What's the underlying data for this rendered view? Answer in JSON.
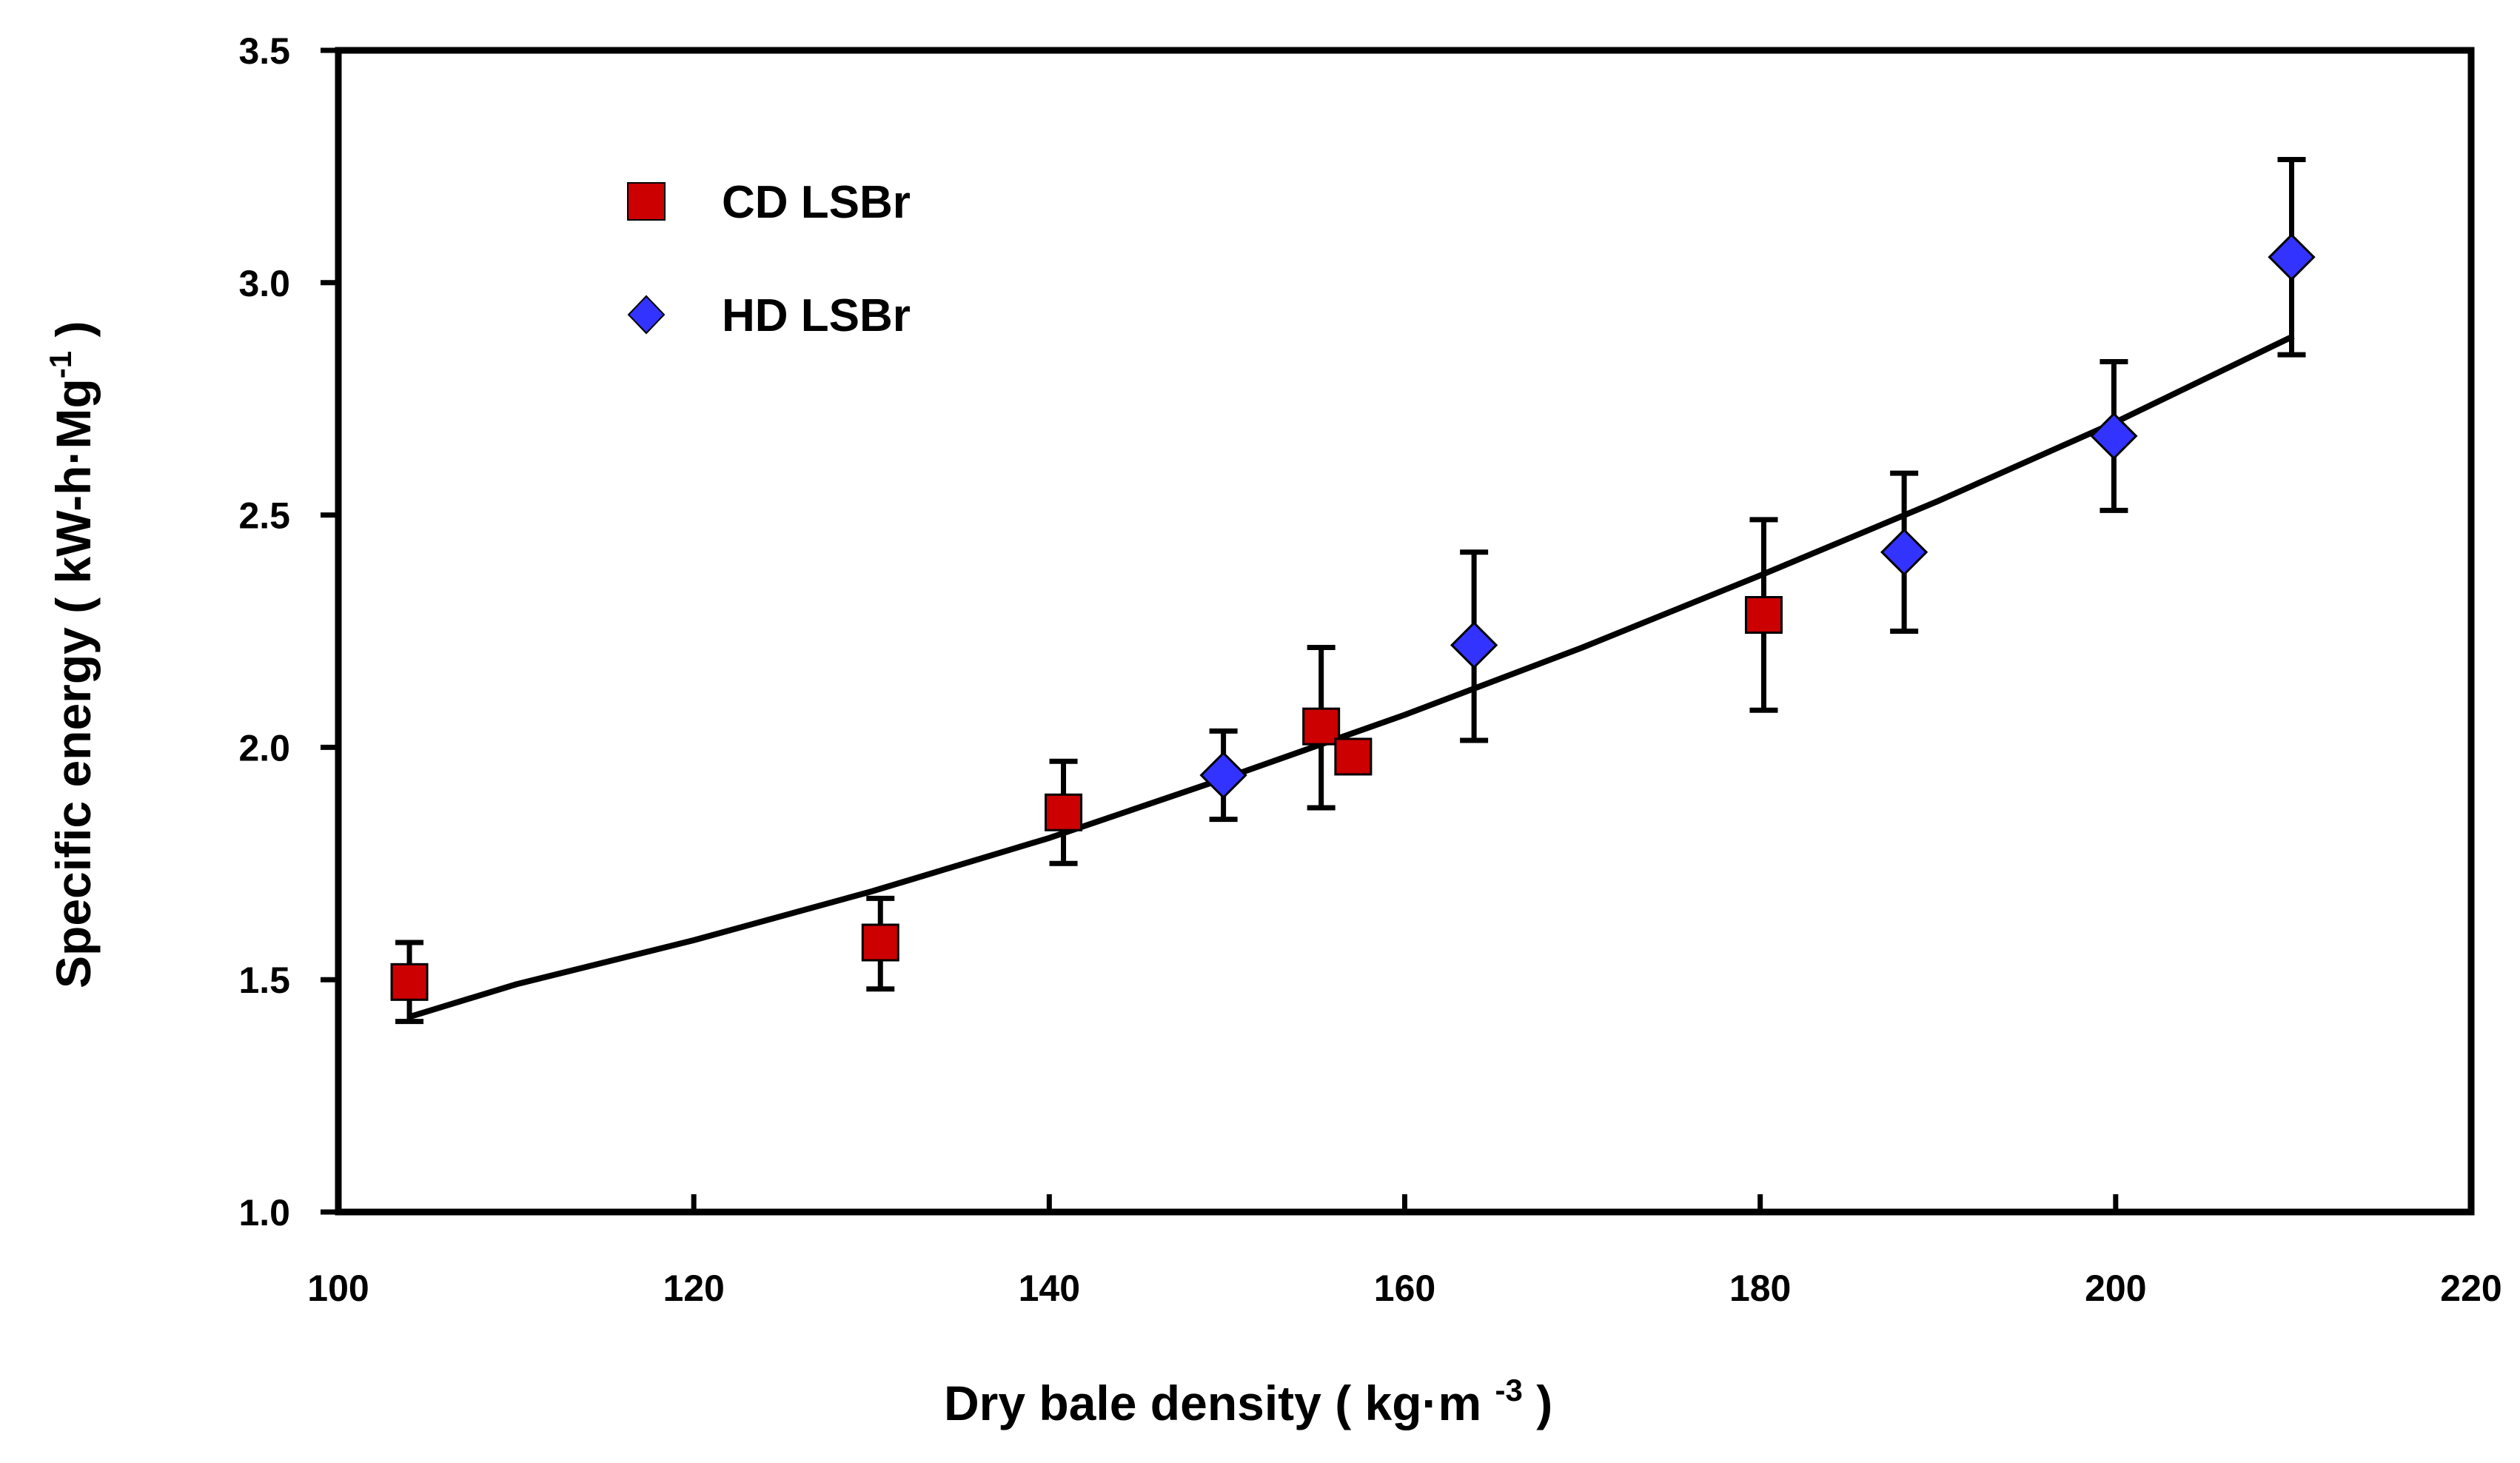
{
  "chart_data": {
    "type": "scatter",
    "title": "",
    "xlabel": "Dry bale density ( kg·m ",
    "xlabel_sup": "-3",
    "xlabel_end": " )",
    "ylabel": "Specific energy ( kW-h·Mg",
    "ylabel_sup": "-1",
    "ylabel_end": " )",
    "xlim": [
      100,
      220
    ],
    "ylim": [
      1.0,
      3.5
    ],
    "xticks": [
      100,
      120,
      140,
      160,
      180,
      200,
      220
    ],
    "xtick_labels": [
      "100",
      "120",
      "140",
      "160",
      "180",
      "200",
      "220"
    ],
    "yticks": [
      1.0,
      1.5,
      2.0,
      2.5,
      3.0,
      3.5
    ],
    "ytick_labels": [
      "1.0",
      "1.5",
      "2.0",
      "2.5",
      "3.0",
      "3.5"
    ],
    "grid": false,
    "legend_position": "top-left",
    "series": [
      {
        "name": "CD LSBr",
        "marker": "square",
        "color": "#cc0000",
        "points": [
          {
            "x": 104,
            "y": 1.495,
            "err_low": 1.41,
            "err_high": 1.58
          },
          {
            "x": 130.5,
            "y": 1.58,
            "err_low": 1.48,
            "err_high": 1.675
          },
          {
            "x": 140.8,
            "y": 1.86,
            "err_low": 1.75,
            "err_high": 1.97
          },
          {
            "x": 155.3,
            "y": 2.045,
            "err_low": 1.87,
            "err_high": 2.215
          },
          {
            "x": 157.1,
            "y": 1.98,
            "err_low": null,
            "err_high": null
          },
          {
            "x": 180.2,
            "y": 2.285,
            "err_low": 2.08,
            "err_high": 2.49
          }
        ]
      },
      {
        "name": "HD LSBr",
        "marker": "diamond",
        "color": "#3333ff",
        "points": [
          {
            "x": 149.8,
            "y": 1.94,
            "err_low": 1.845,
            "err_high": 2.035
          },
          {
            "x": 163.9,
            "y": 2.22,
            "err_low": 2.015,
            "err_high": 2.42
          },
          {
            "x": 188.1,
            "y": 2.42,
            "err_low": 2.25,
            "err_high": 2.59
          },
          {
            "x": 199.9,
            "y": 2.67,
            "err_low": 2.51,
            "err_high": 2.83
          },
          {
            "x": 209.9,
            "y": 3.055,
            "err_low": 2.845,
            "err_high": 3.265
          }
        ]
      }
    ],
    "fit_curve": {
      "name": "fit",
      "color": "#000000",
      "x": [
        104,
        110,
        120,
        130,
        140,
        150,
        160,
        170,
        180,
        190,
        200,
        210
      ],
      "y": [
        1.42,
        1.49,
        1.585,
        1.69,
        1.805,
        1.935,
        2.07,
        2.215,
        2.37,
        2.53,
        2.7,
        2.885
      ]
    }
  }
}
